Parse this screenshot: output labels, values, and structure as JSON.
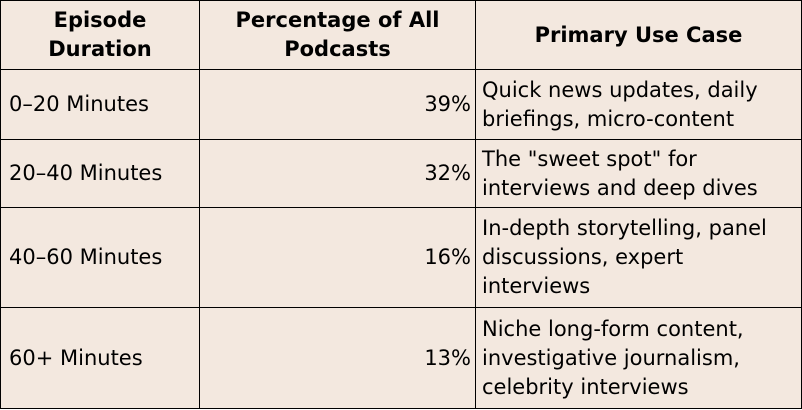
{
  "table": {
    "headers": {
      "duration": "Episode\nDuration",
      "percentage": "Percentage of All\nPodcasts",
      "use_case": "Primary Use Case"
    },
    "rows": [
      {
        "duration": "0–20 Minutes",
        "percentage": "39%",
        "use_case": "Quick news updates, daily briefings, micro-content"
      },
      {
        "duration": "20–40 Minutes",
        "percentage": "32%",
        "use_case": "The \"sweet spot\" for interviews and deep dives"
      },
      {
        "duration": "40–60 Minutes",
        "percentage": "16%",
        "use_case": "In-depth storytelling, panel discussions, expert interviews"
      },
      {
        "duration": "60+ Minutes",
        "percentage": "13%",
        "use_case": "Niche long-form content, investigative journalism, celebrity interviews"
      }
    ]
  },
  "colors": {
    "cell_background": "#f3e8df",
    "border": "#000000",
    "text": "#000000"
  }
}
